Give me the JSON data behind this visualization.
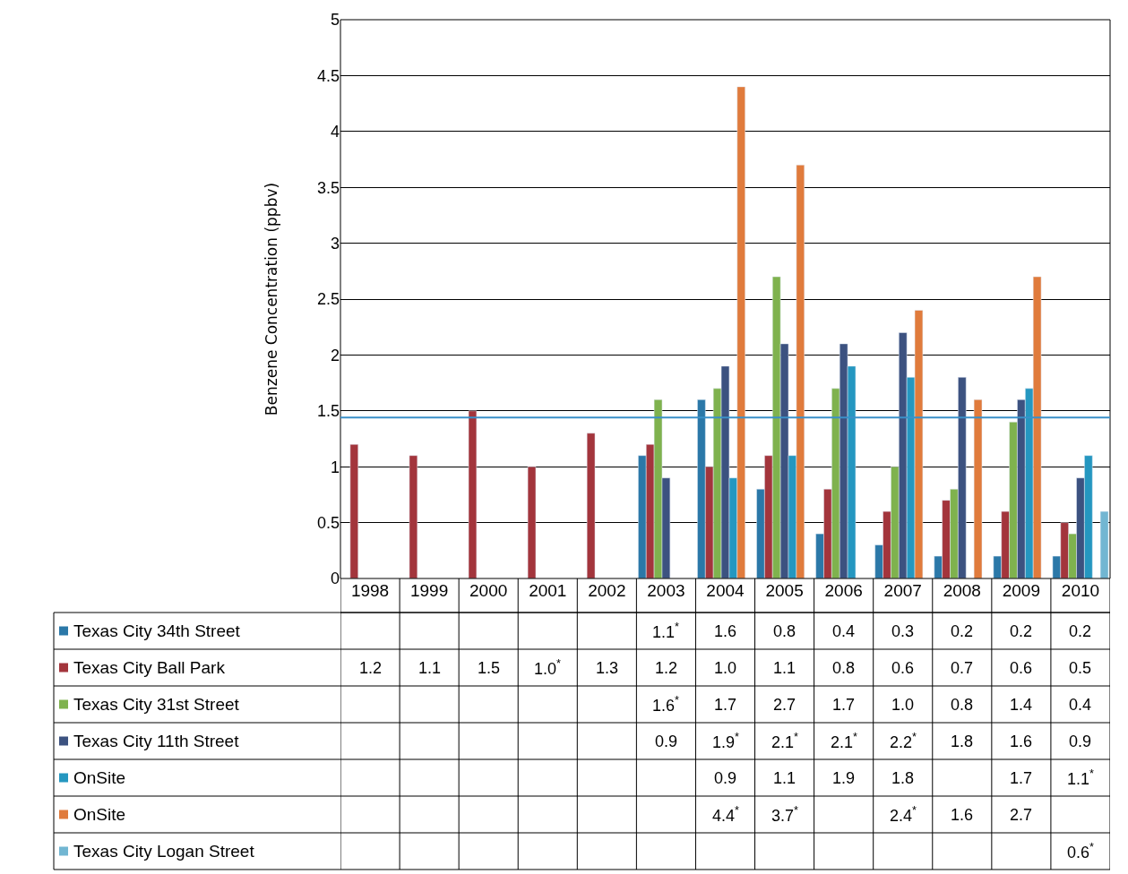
{
  "chart_data": {
    "type": "bar",
    "ylabel": "Benzene Concentration (ppbv)",
    "categories": [
      "1998",
      "1999",
      "2000",
      "2001",
      "2002",
      "2003",
      "2004",
      "2005",
      "2006",
      "2007",
      "2008",
      "2009",
      "2010"
    ],
    "series": [
      {
        "name": "Texas City 34th Street",
        "color": "#2b78a8",
        "values": [
          null,
          null,
          null,
          null,
          null,
          1.1,
          1.6,
          0.8,
          0.4,
          0.3,
          0.2,
          0.2,
          0.2
        ],
        "value_labels": [
          null,
          null,
          null,
          null,
          null,
          "1.1$^{*}$",
          "1.6",
          "0.8",
          "0.4",
          "0.3",
          "0.2",
          "0.2",
          "0.2"
        ]
      },
      {
        "name": "Texas City Ball Park",
        "color": "#a3353c",
        "values": [
          1.2,
          1.1,
          1.5,
          1.0,
          1.3,
          1.2,
          1.0,
          1.1,
          0.8,
          0.6,
          0.7,
          0.6,
          0.5
        ],
        "value_labels": [
          "1.2",
          "1.1",
          "1.5",
          "1.0$^{*}$",
          "1.3",
          "1.2",
          "1.0",
          "1.1",
          "0.8",
          "0.6",
          "0.7",
          "0.6",
          "0.5"
        ]
      },
      {
        "name": "Texas City 31st Street",
        "color": "#7fb24e",
        "values": [
          null,
          null,
          null,
          null,
          null,
          1.6,
          1.7,
          2.7,
          1.7,
          1.0,
          0.8,
          1.4,
          0.4
        ],
        "value_labels": [
          null,
          null,
          null,
          null,
          null,
          "1.6$^{*}$",
          "1.7",
          "2.7",
          "1.7",
          "1.0",
          "0.8",
          "1.4",
          "0.4"
        ]
      },
      {
        "name": "Texas City 11th Street",
        "color": "#3c5280",
        "values": [
          null,
          null,
          null,
          null,
          null,
          0.9,
          1.9,
          2.1,
          2.1,
          2.2,
          1.8,
          1.6,
          0.9
        ],
        "value_labels": [
          null,
          null,
          null,
          null,
          null,
          "0.9",
          "1.9$^{*}$",
          "2.1$^{*}$",
          "2.1$^{*}$",
          "2.2$^{*}$",
          "1.8",
          "1.6",
          "0.9"
        ]
      },
      {
        "name": "OnSite",
        "color": "#2597c0",
        "values": [
          null,
          null,
          null,
          null,
          null,
          null,
          0.9,
          1.1,
          1.9,
          1.8,
          null,
          1.7,
          1.1
        ],
        "value_labels": [
          null,
          null,
          null,
          null,
          null,
          null,
          "0.9",
          "1.1",
          "1.9",
          "1.8",
          null,
          "1.7",
          "1.1$^{*}$"
        ]
      },
      {
        "name": "OnSite",
        "color": "#e07b3c",
        "values": [
          null,
          null,
          null,
          null,
          null,
          null,
          4.4,
          3.7,
          null,
          2.4,
          1.6,
          2.7,
          null
        ],
        "value_labels": [
          null,
          null,
          null,
          null,
          null,
          null,
          "4.4$^{*}$",
          "3.7$^{*}$",
          null,
          "2.4$^{*}$",
          "1.6",
          "2.7",
          null
        ]
      },
      {
        "name": "Texas City Logan Street",
        "color": "#72b6d2",
        "values": [
          null,
          null,
          null,
          null,
          null,
          null,
          null,
          null,
          null,
          null,
          null,
          null,
          0.6
        ],
        "value_labels": [
          null,
          null,
          null,
          null,
          null,
          null,
          null,
          null,
          null,
          null,
          null,
          null,
          "0.6$^{*}$"
        ]
      }
    ],
    "ylim": [
      0,
      5
    ],
    "yticks": [
      0,
      0.5,
      1,
      1.5,
      2,
      2.5,
      3,
      3.5,
      4,
      4.5,
      5
    ],
    "ref_lines": [
      {
        "axis": "y",
        "value": 1.44,
        "color": "#3a90c8"
      }
    ],
    "grid": "y",
    "legend": "bottom left"
  }
}
